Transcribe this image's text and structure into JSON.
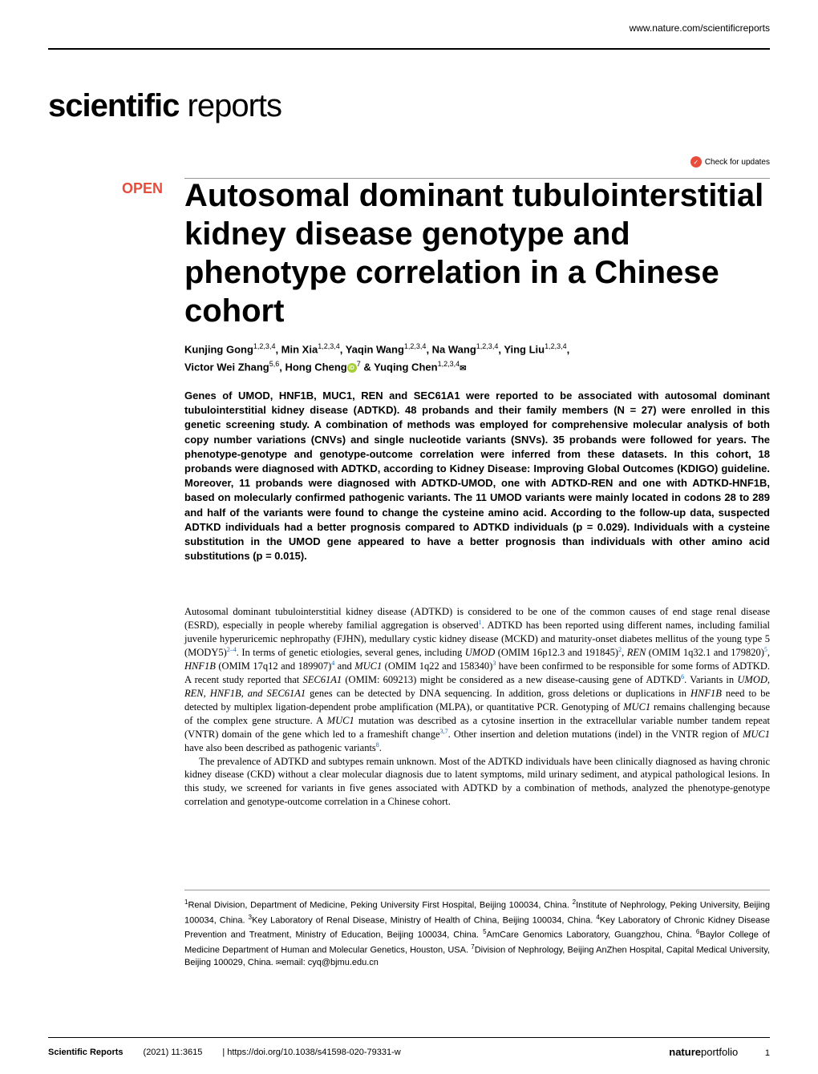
{
  "header": {
    "url": "www.nature.com/scientificreports"
  },
  "journal": {
    "name_bold": "scientific",
    "name_light": " reports"
  },
  "checkUpdates": {
    "label": "Check for updates"
  },
  "openBadge": "OPEN",
  "title": "Autosomal dominant tubulointerstitial kidney disease genotype and phenotype correlation in a Chinese cohort",
  "authors": {
    "line1": "Kunjing Gong",
    "aff1": "1,2,3,4",
    "sep1": ", Min Xia",
    "aff2": "1,2,3,4",
    "sep2": ", Yaqin Wang",
    "aff3": "1,2,3,4",
    "sep3": ", Na Wang",
    "aff4": "1,2,3,4",
    "sep4": ", Ying Liu",
    "aff5": "1,2,3,4",
    "sep5": ",",
    "line2a": "Victor Wei Zhang",
    "aff6": "5,6",
    "sep6": ", Hong Cheng",
    "aff7": "7",
    "sep7": " & Yuqing Chen",
    "aff8": "1,2,3,4"
  },
  "abstract": "Genes of UMOD, HNF1B, MUC1, REN and SEC61A1 were reported to be associated with autosomal dominant tubulointerstitial kidney disease (ADTKD). 48 probands and their family members (N = 27) were enrolled in this genetic screening study. A combination of methods was employed for comprehensive molecular analysis of both copy number variations (CNVs) and single nucleotide variants (SNVs). 35 probands were followed for years. The phenotype-genotype and genotype-outcome correlation were inferred from these datasets. In this cohort, 18 probands were diagnosed with ADTKD, according to Kidney Disease: Improving Global Outcomes (KDIGO) guideline. Moreover, 11 probands were diagnosed with ADTKD-UMOD, one with ADTKD-REN and one with ADTKD-HNF1B, based on molecularly confirmed pathogenic variants. The 11 UMOD variants were mainly located in codons 28 to 289 and half of the variants were found to change the cysteine amino acid. According to the follow-up data, suspected ADTKD individuals had a better prognosis compared to ADTKD individuals (p = 0.029). Individuals with a cysteine substitution in the UMOD gene appeared to have a better prognosis than individuals with other amino acid substitutions (p = 0.015).",
  "body": {
    "p1": "Autosomal dominant tubulointerstitial kidney disease (ADTKD) is considered to be one of the common causes of end stage renal disease (ESRD), especially in people whereby familial aggregation is observed",
    "p1_ref1": "1",
    "p1_cont": ". ADTKD has been reported using different names, including familial juvenile hyperuricemic nephropathy (FJHN), medullary cystic kidney disease (MCKD) and maturity-onset diabetes mellitus of the young type 5 (MODY5)",
    "p1_ref2": "2–4",
    "p1_cont2": ". In terms of genetic etiologies, several genes, including ",
    "p1_gene1": "UMOD",
    "p1_omim1": " (OMIM 16p12.3 and 191845)",
    "p1_ref3": "2",
    "p1_cont3": ", ",
    "p1_gene2": "REN",
    "p1_omim2": " (OMIM 1q32.1 and 179820)",
    "p1_ref4": "5",
    "p1_cont4": ", ",
    "p1_gene3": "HNF1B",
    "p1_omim3": " (OMIM 17q12 and 189907)",
    "p1_ref5": "4",
    "p1_cont5": " and ",
    "p1_gene4": "MUC1",
    "p1_omim4": " (OMIM 1q22 and 158340)",
    "p1_ref6": "3",
    "p1_cont6": " have been confirmed to be responsible for some forms of ADTKD. A recent study reported that ",
    "p1_gene5": "SEC61A1",
    "p1_omim5": " (OMIM: 609213) might be considered as a new disease-causing gene of ADTKD",
    "p1_ref7": "6",
    "p1_cont7": ". Variants in ",
    "p1_genes": "UMOD, REN, HNF1B, and SEC61A1",
    "p1_cont8": " genes can be detected by DNA sequencing. In addition, gross deletions or duplications in ",
    "p1_gene6": "HNF1B",
    "p1_cont9": " need to be detected by multiplex ligation-dependent probe amplification (MLPA), or quantitative PCR. Genotyping of ",
    "p1_gene7": "MUC1",
    "p1_cont10": " remains challenging because of the complex gene structure. A ",
    "p1_gene8": "MUC1",
    "p1_cont11": " mutation was described as a cytosine insertion in the extracellular variable number tandem repeat (VNTR) domain of the gene which led to a frameshift change",
    "p1_ref8": "3,7",
    "p1_cont12": ". Other insertion and deletion mutations (indel) in the VNTR region of ",
    "p1_gene9": "MUC1",
    "p1_cont13": " have also been described as pathogenic variants",
    "p1_ref9": "8",
    "p1_end": ".",
    "p2": "The prevalence of ADTKD and subtypes remain unknown. Most of the ADTKD individuals have been clinically diagnosed as having chronic kidney disease (CKD) without a clear molecular diagnosis due to latent symptoms, mild urinary sediment, and atypical pathological lesions. In this study, we screened for variants in five genes associated with ADTKD by a combination of methods, analyzed the phenotype-genotype correlation and genotype-outcome correlation in a Chinese cohort."
  },
  "affiliations": {
    "a1": "Renal Division, Department of Medicine, Peking University First Hospital, Beijing 100034, China. ",
    "a2": "Institute of Nephrology, Peking University, Beijing 100034, China. ",
    "a3": "Key Laboratory of Renal Disease, Ministry of Health of China, Beijing 100034, China. ",
    "a4": "Key Laboratory of Chronic Kidney Disease Prevention and Treatment, Ministry of Education, Beijing 100034, China. ",
    "a5": "AmCare Genomics Laboratory, Guangzhou, China. ",
    "a6": "Baylor College of Medicine Department of Human and Molecular Genetics, Houston, USA. ",
    "a7": "Division of Nephrology, Beijing AnZhen Hospital, Capital Medical University, Beijing 100029, China. ",
    "email": "email: cyq@bjmu.edu.cn"
  },
  "footer": {
    "journal": "Scientific Reports",
    "citation": "(2021) 11:3615",
    "doi": "| https://doi.org/10.1038/s41598-020-79331-w",
    "portfolio_bold": "nature",
    "portfolio_light": "portfolio",
    "page": "1"
  }
}
